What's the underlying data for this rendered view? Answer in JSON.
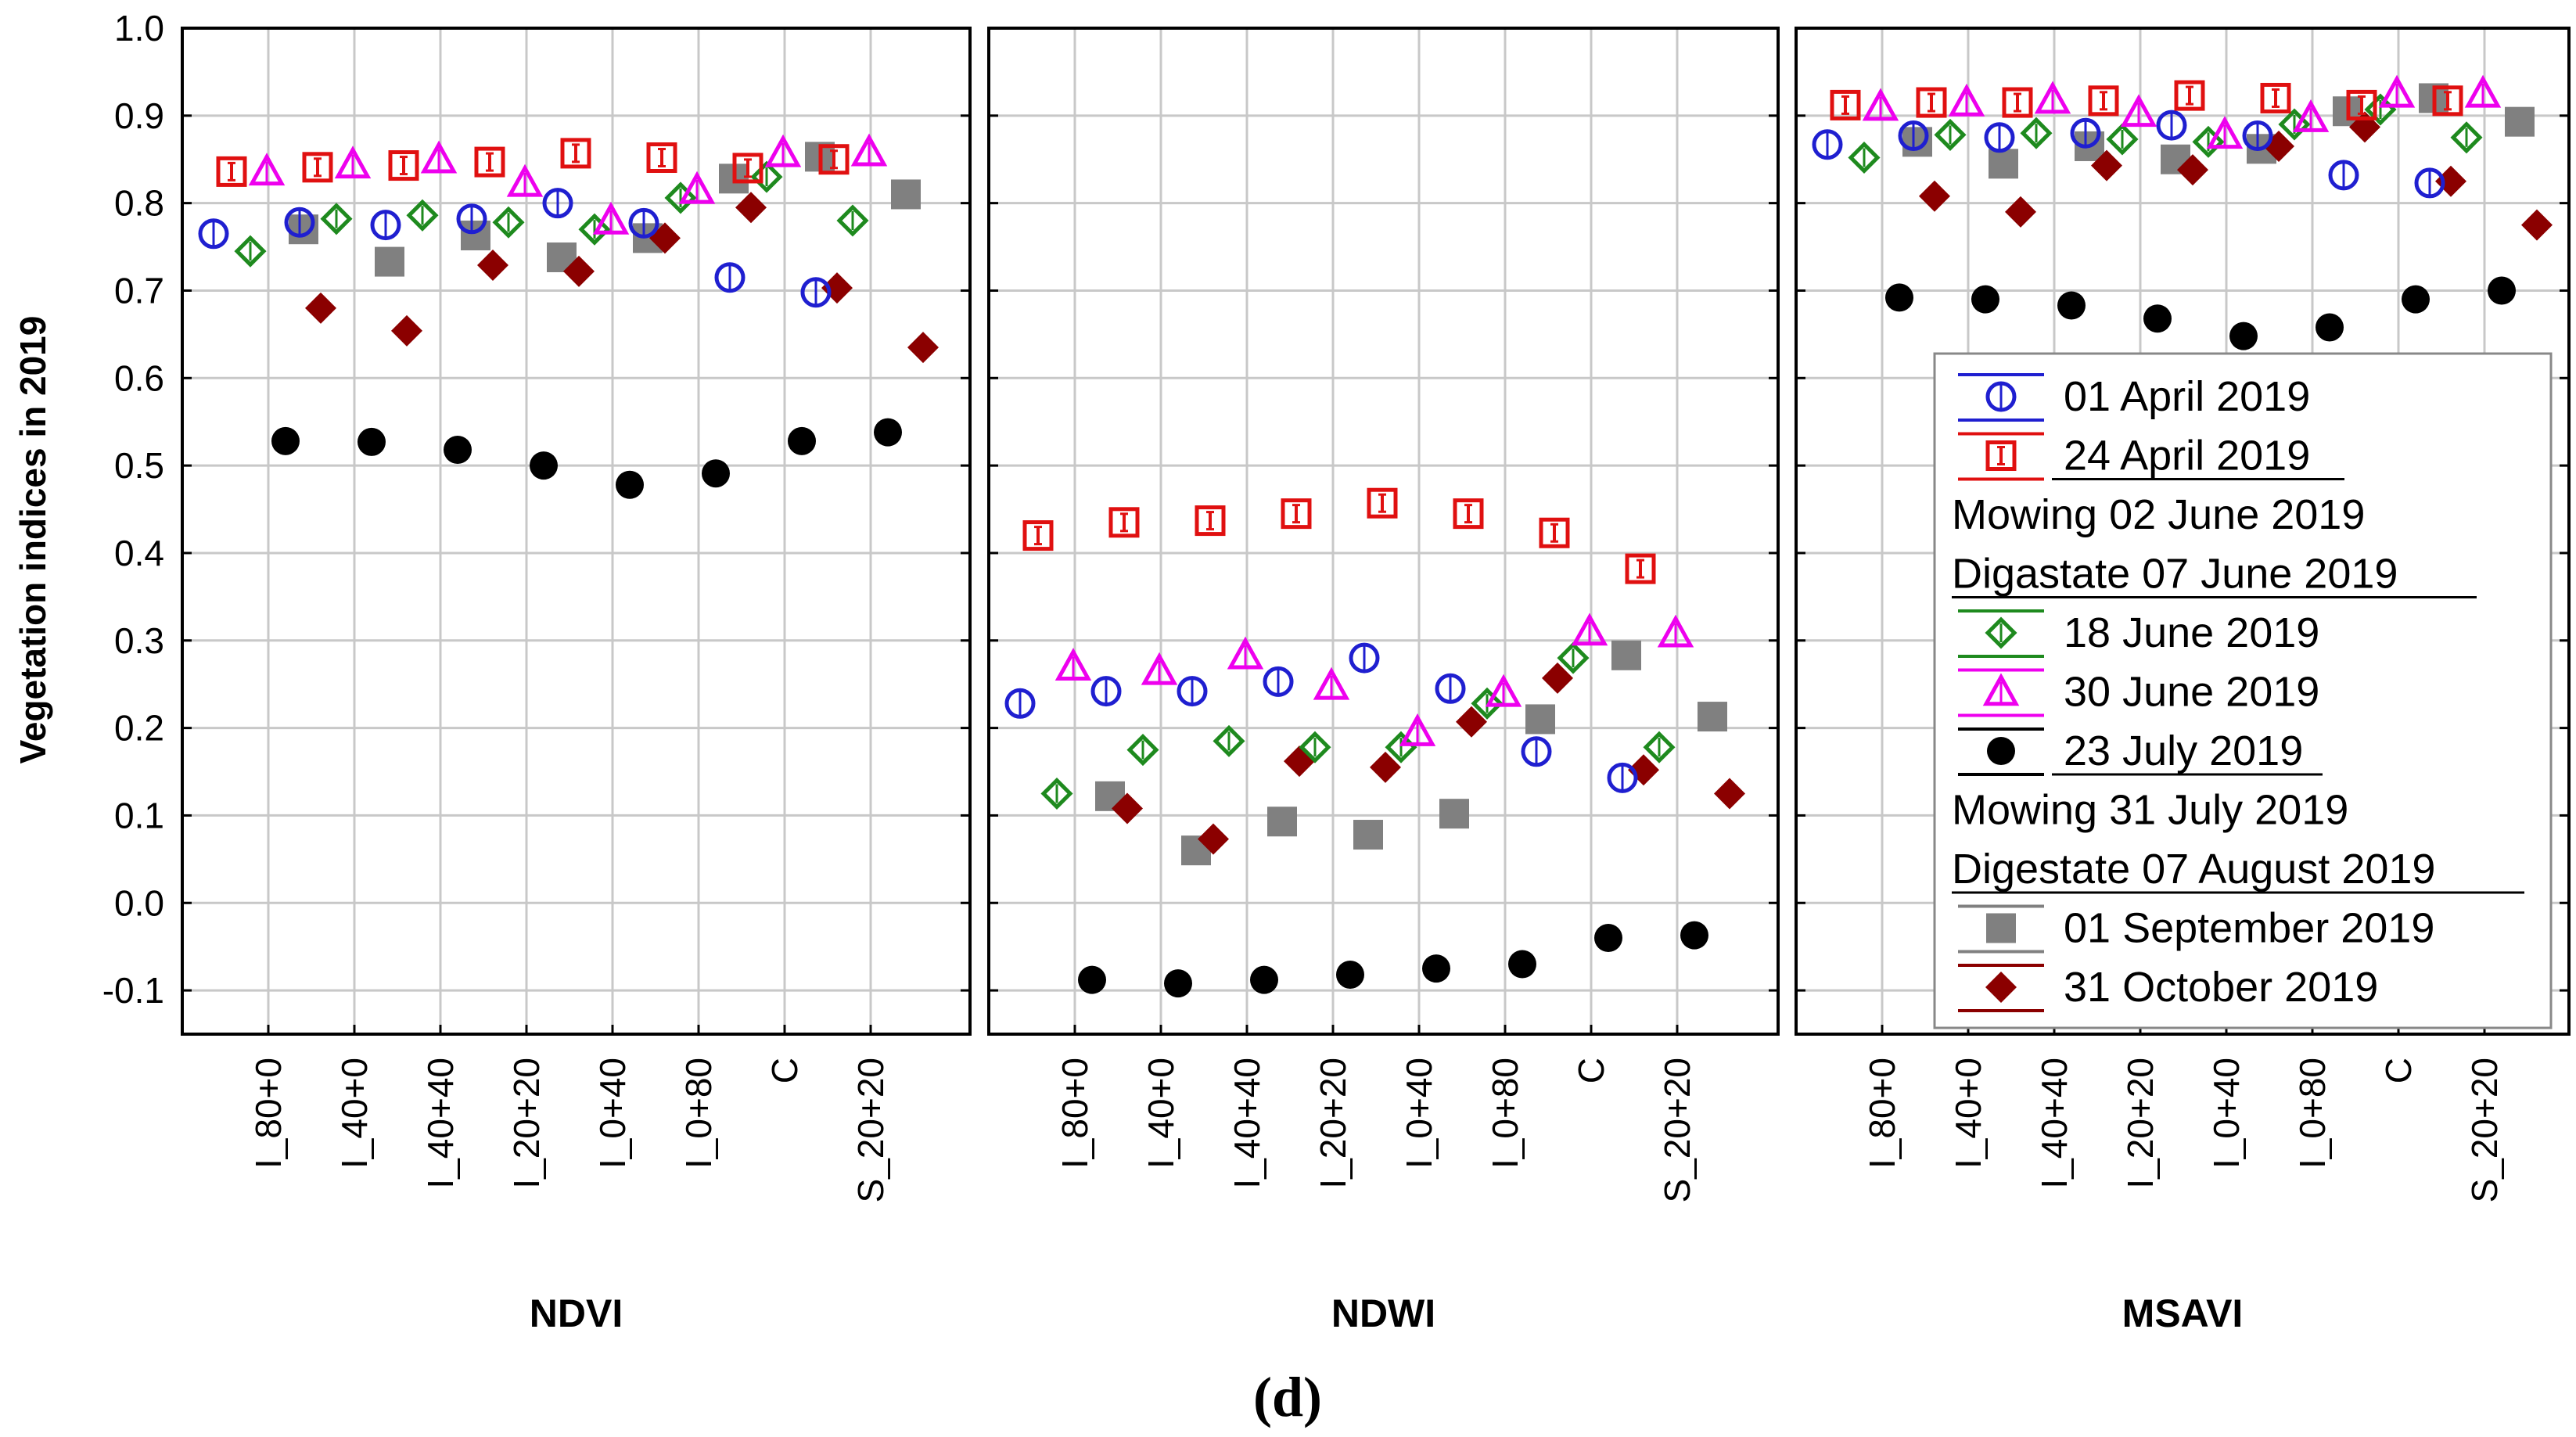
{
  "chart_data": {
    "type": "scatter",
    "ylabel": "Vegetation indices in 2019",
    "ylim": [
      -0.15,
      1.0
    ],
    "yticks": [
      "1.0",
      "0.9",
      "0.8",
      "0.7",
      "0.6",
      "0.5",
      "0.4",
      "0.3",
      "0.2",
      "0.1",
      "0.0",
      "-0.1"
    ],
    "categories": [
      "I_80+0",
      "I_40+0",
      "I_40+40",
      "I_20+20",
      "I_0+40",
      "I_0+80",
      "C",
      "S_20+20"
    ],
    "caption": "(d)",
    "colors": {
      "apr01": "#1f1fd0",
      "apr24": "#e01010",
      "jun18": "#1e8a1e",
      "jun30": "#ee00ee",
      "jul23": "#000000",
      "sep01": "#808080",
      "oct31": "#8b0000"
    },
    "legend": {
      "entries": [
        {
          "type": "series",
          "key": "apr01",
          "marker": "circle-open",
          "label": "01 April 2019"
        },
        {
          "type": "series",
          "key": "apr24",
          "marker": "square-open",
          "label": "24 April 2019"
        },
        {
          "type": "text",
          "label": "Mowing 02 June 2019"
        },
        {
          "type": "text",
          "label": "Digastate 07 June 2019",
          "underline": true
        },
        {
          "type": "series",
          "key": "jun18",
          "marker": "diamond-open",
          "label": "18 June 2019"
        },
        {
          "type": "series",
          "key": "jun30",
          "marker": "triangle-open",
          "label": "30 June 2019"
        },
        {
          "type": "series",
          "key": "jul23",
          "marker": "circle-filled",
          "label": "23 July 2019"
        },
        {
          "type": "text",
          "label": "Mowing 31 July 2019"
        },
        {
          "type": "text",
          "label": "Digestate 07 August 2019",
          "underline": true
        },
        {
          "type": "series",
          "key": "sep01",
          "marker": "square-filled",
          "label": "01 September 2019"
        },
        {
          "type": "series",
          "key": "oct31",
          "marker": "diamond-filled",
          "label": "31 October 2019"
        }
      ]
    },
    "panels": [
      {
        "name": "NDVI",
        "series": {
          "apr01": [
            0.765,
            0.778,
            0.775,
            0.782,
            0.8,
            0.777,
            0.715,
            0.698
          ],
          "apr24": [
            0.836,
            0.841,
            0.843,
            0.847,
            0.857,
            0.852,
            0.84,
            0.85
          ],
          "jun18": [
            0.745,
            0.782,
            0.786,
            0.778,
            0.77,
            0.806,
            0.83,
            0.78
          ],
          "jun30": [
            0.836,
            0.844,
            0.85,
            0.823,
            0.78,
            0.815,
            0.857,
            0.858
          ],
          "jul23": [
            0.528,
            0.527,
            0.518,
            0.5,
            0.478,
            0.491,
            0.528,
            0.538
          ],
          "sep01": [
            0.77,
            0.733,
            0.763,
            0.738,
            0.76,
            0.828,
            0.853,
            0.81
          ],
          "oct31": [
            0.68,
            0.654,
            0.729,
            0.722,
            0.76,
            0.795,
            0.703,
            0.635
          ]
        }
      },
      {
        "name": "NDWI",
        "series": {
          "apr01": [
            0.228,
            0.242,
            0.242,
            0.253,
            0.28,
            0.245,
            0.173,
            0.143
          ],
          "apr24": [
            0.42,
            0.435,
            0.437,
            0.445,
            0.457,
            0.445,
            0.423,
            0.382
          ],
          "jun18": [
            0.125,
            0.175,
            0.185,
            0.178,
            0.178,
            0.228,
            0.28,
            0.178
          ],
          "jun30": [
            0.27,
            0.265,
            0.283,
            0.248,
            0.195,
            0.24,
            0.31,
            0.308
          ],
          "jul23": [
            -0.088,
            -0.092,
            -0.088,
            -0.082,
            -0.075,
            -0.07,
            -0.04,
            -0.037
          ],
          "sep01": [
            0.122,
            0.06,
            0.093,
            0.078,
            0.102,
            0.21,
            0.283,
            0.213
          ],
          "oct31": [
            0.108,
            0.073,
            0.162,
            0.155,
            0.207,
            0.257,
            0.152,
            0.125
          ]
        }
      },
      {
        "name": "MSAVI",
        "series": {
          "apr01": [
            0.867,
            0.877,
            0.875,
            0.88,
            0.889,
            0.877,
            0.832,
            0.823
          ],
          "apr24": [
            0.912,
            0.915,
            0.915,
            0.917,
            0.923,
            0.92,
            0.912,
            0.917
          ],
          "jun18": [
            0.852,
            0.878,
            0.88,
            0.873,
            0.87,
            0.89,
            0.907,
            0.875
          ],
          "jun30": [
            0.91,
            0.915,
            0.918,
            0.903,
            0.878,
            0.897,
            0.925,
            0.925
          ],
          "jul23": [
            0.692,
            0.69,
            0.683,
            0.668,
            0.648,
            0.658,
            0.69,
            0.7
          ],
          "sep01": [
            0.87,
            0.845,
            0.865,
            0.85,
            0.862,
            0.905,
            0.92,
            0.893
          ],
          "oct31": [
            0.808,
            0.79,
            0.843,
            0.838,
            0.865,
            0.887,
            0.825,
            0.775
          ]
        }
      }
    ]
  }
}
